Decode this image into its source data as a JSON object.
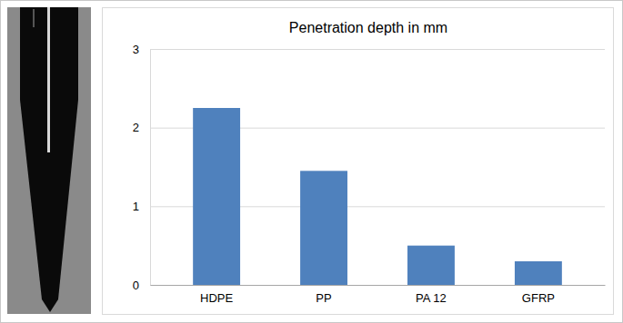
{
  "chart_data": {
    "type": "bar",
    "title": "Penetration depth in mm",
    "categories": [
      "HDPE",
      "PP",
      "PA 12",
      "GFRP"
    ],
    "values": [
      2.25,
      1.45,
      0.5,
      0.3
    ],
    "color": "#4f81bd",
    "ylim": [
      0,
      3
    ],
    "yticks": [
      0,
      1,
      2,
      3
    ],
    "grid": true
  }
}
